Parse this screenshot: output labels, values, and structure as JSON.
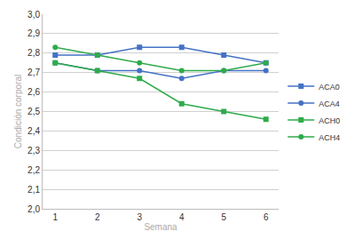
{
  "chart_data": {
    "type": "line",
    "x_label": "Semana",
    "y_label": "Condición corporal",
    "x": [
      1,
      2,
      3,
      4,
      5,
      6
    ],
    "series": [
      {
        "name": "ACA0",
        "color": "#4472c4",
        "marker": "square",
        "values": [
          2.79,
          2.79,
          2.83,
          2.83,
          2.79,
          2.75
        ]
      },
      {
        "name": "ACA4",
        "color": "#4472c4",
        "marker": "circle",
        "values": [
          2.75,
          2.71,
          2.71,
          2.67,
          2.71,
          2.71
        ]
      },
      {
        "name": "ACH0",
        "color": "#2eab4b",
        "marker": "square",
        "values": [
          2.75,
          2.71,
          2.67,
          2.54,
          2.5,
          2.46
        ]
      },
      {
        "name": "ACH4",
        "color": "#2eab4b",
        "marker": "circle",
        "values": [
          2.83,
          2.79,
          2.75,
          2.71,
          2.71,
          2.75
        ]
      }
    ],
    "xlim": [
      0.7,
      6.3
    ],
    "xticks": [
      1,
      2,
      3,
      4,
      5,
      6
    ],
    "ylim": [
      2.0,
      3.0
    ],
    "yticks": [
      {
        "value": 2.0,
        "label": "2,0"
      },
      {
        "value": 2.1,
        "label": "2,1"
      },
      {
        "value": 2.2,
        "label": "2,2"
      },
      {
        "value": 2.3,
        "label": "2,3"
      },
      {
        "value": 2.4,
        "label": "2,4"
      },
      {
        "value": 2.5,
        "label": "2,5"
      },
      {
        "value": 2.6,
        "label": "2,6"
      },
      {
        "value": 2.7,
        "label": "2,7"
      },
      {
        "value": 2.8,
        "label": "2,8"
      },
      {
        "value": 2.9,
        "label": "2,9"
      },
      {
        "value": 3.0,
        "label": "3,0"
      }
    ],
    "grid": true,
    "legend": "right"
  }
}
